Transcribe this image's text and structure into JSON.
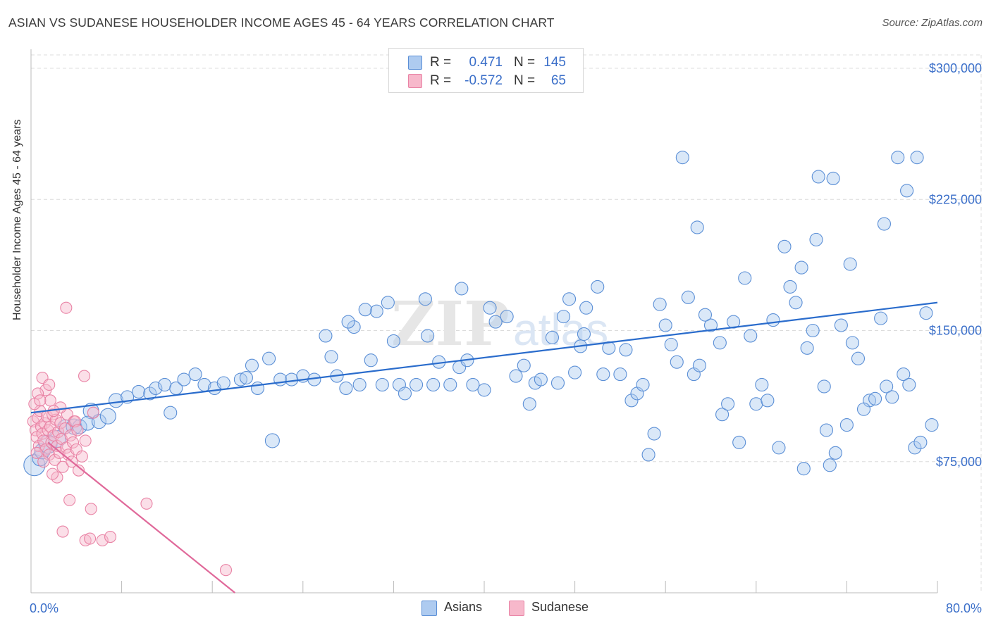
{
  "header": {
    "title": "ASIAN VS SUDANESE HOUSEHOLDER INCOME AGES 45 - 64 YEARS CORRELATION CHART",
    "source": "Source: ZipAtlas.com"
  },
  "legend": {
    "rows": [
      {
        "r_label": "R =",
        "r_value": "0.471",
        "n_label": "N =",
        "n_value": "145"
      },
      {
        "r_label": "R =",
        "r_value": "-0.572",
        "n_label": "N =",
        "n_value": "65"
      }
    ],
    "series": [
      "Asians",
      "Sudanese"
    ]
  },
  "colors": {
    "asian_fill": "#aecbf0",
    "asian_stroke": "#5b8fd6",
    "asian_line": "#2a6ccc",
    "sudanese_fill": "#f7b8cb",
    "sudanese_stroke": "#e983a5",
    "sudanese_line": "#e0699a",
    "axis_text": "#3b6fc9",
    "grid": "#dcdcdc"
  },
  "chart_data": {
    "type": "scatter",
    "title": "ASIAN VS SUDANESE HOUSEHOLDER INCOME AGES 45 - 64 YEARS CORRELATION CHART",
    "xlabel": "",
    "ylabel": "Householder Income Ages 45 - 64 years",
    "xlim": [
      0,
      80
    ],
    "ylim": [
      0,
      300000
    ],
    "x_tick_labels": [
      "0.0%",
      "80.0%"
    ],
    "y_ticks": [
      75000,
      150000,
      225000,
      300000
    ],
    "y_tick_labels": [
      "$75,000",
      "$150,000",
      "$225,000",
      "$300,000"
    ],
    "grid": true,
    "legend_position": "top-center",
    "watermark": "ZIPatlas",
    "series": [
      {
        "name": "Asians",
        "r": 0.471,
        "n": 145,
        "trendline": {
          "x": [
            0,
            80
          ],
          "y": [
            103000,
            166000
          ]
        },
        "points": [
          [
            0.3,
            73000,
            30
          ],
          [
            0.8,
            77000,
            22
          ],
          [
            1.0,
            81000,
            22
          ],
          [
            1.5,
            85000,
            26
          ],
          [
            2.3,
            88000,
            24
          ],
          [
            3.0,
            95000,
            20
          ],
          [
            3.8,
            95000,
            22
          ],
          [
            4.3,
            95000,
            20
          ],
          [
            5.3,
            104000,
            22
          ],
          [
            5.0,
            97000,
            20
          ],
          [
            6.0,
            98000,
            20
          ],
          [
            6.8,
            101000,
            22
          ],
          [
            7.5,
            110000,
            20
          ],
          [
            8.5,
            112000,
            18
          ],
          [
            9.5,
            115000,
            18
          ],
          [
            10.5,
            114000,
            18
          ],
          [
            11.0,
            117000,
            18
          ],
          [
            11.8,
            119000,
            18
          ],
          [
            12.3,
            103000,
            18
          ],
          [
            12.8,
            117000,
            18
          ],
          [
            13.5,
            122000,
            18
          ],
          [
            14.5,
            125000,
            18
          ],
          [
            15.3,
            119000,
            18
          ],
          [
            16.2,
            117000,
            18
          ],
          [
            17.0,
            120000,
            18
          ],
          [
            18.5,
            122000,
            18
          ],
          [
            19.0,
            123000,
            18
          ],
          [
            19.5,
            130000,
            18
          ],
          [
            20.0,
            117000,
            18
          ],
          [
            21.0,
            134000,
            18
          ],
          [
            21.3,
            87000,
            20
          ],
          [
            22.0,
            122000,
            18
          ],
          [
            23.0,
            122000,
            18
          ],
          [
            24.0,
            124000,
            18
          ],
          [
            25.0,
            122000,
            18
          ],
          [
            26.0,
            147000,
            18
          ],
          [
            26.5,
            135000,
            18
          ],
          [
            27.0,
            124000,
            18
          ],
          [
            27.8,
            117000,
            18
          ],
          [
            28.5,
            152000,
            18
          ],
          [
            29.0,
            119000,
            18
          ],
          [
            30.0,
            133000,
            18
          ],
          [
            31.0,
            119000,
            18
          ],
          [
            32.0,
            144000,
            18
          ],
          [
            32.5,
            119000,
            18
          ],
          [
            33.0,
            114000,
            18
          ],
          [
            34.0,
            119000,
            18
          ],
          [
            35.0,
            147000,
            18
          ],
          [
            35.5,
            119000,
            18
          ],
          [
            36.0,
            132000,
            18
          ],
          [
            37.0,
            119000,
            18
          ],
          [
            37.8,
            129000,
            18
          ],
          [
            38.5,
            133000,
            18
          ],
          [
            39.0,
            119000,
            18
          ],
          [
            40.0,
            116000,
            18
          ],
          [
            40.5,
            163000,
            18
          ],
          [
            41.0,
            155000,
            18
          ],
          [
            42.0,
            158000,
            18
          ],
          [
            42.8,
            124000,
            18
          ],
          [
            43.5,
            130000,
            18
          ],
          [
            44.5,
            120000,
            18
          ],
          [
            44.0,
            108000,
            18
          ],
          [
            45.0,
            122000,
            18
          ],
          [
            46.0,
            146000,
            18
          ],
          [
            46.5,
            120000,
            18
          ],
          [
            47.0,
            158000,
            18
          ],
          [
            47.5,
            168000,
            18
          ],
          [
            48.0,
            126000,
            18
          ],
          [
            48.5,
            141000,
            18
          ],
          [
            49.0,
            163000,
            18
          ],
          [
            50.0,
            175000,
            18
          ],
          [
            50.5,
            125000,
            18
          ],
          [
            51.0,
            140000,
            18
          ],
          [
            52.0,
            125000,
            18
          ],
          [
            53.0,
            110000,
            18
          ],
          [
            53.5,
            114000,
            18
          ],
          [
            54.0,
            119000,
            18
          ],
          [
            55.5,
            165000,
            18
          ],
          [
            56.0,
            153000,
            18
          ],
          [
            56.5,
            142000,
            18
          ],
          [
            57.0,
            132000,
            18
          ],
          [
            58.0,
            169000,
            18
          ],
          [
            58.5,
            125000,
            18
          ],
          [
            59.0,
            130000,
            18
          ],
          [
            60.0,
            153000,
            18
          ],
          [
            61.0,
            102000,
            18
          ],
          [
            61.5,
            108000,
            18
          ],
          [
            62.0,
            155000,
            18
          ],
          [
            63.0,
            180000,
            18
          ],
          [
            63.5,
            147000,
            18
          ],
          [
            64.0,
            108000,
            18
          ],
          [
            64.5,
            119000,
            18
          ],
          [
            65.0,
            110000,
            18
          ],
          [
            66.5,
            198000,
            18
          ],
          [
            67.0,
            175000,
            18
          ],
          [
            67.5,
            166000,
            18
          ],
          [
            68.0,
            186000,
            18
          ],
          [
            68.5,
            140000,
            18
          ],
          [
            69.0,
            150000,
            18
          ],
          [
            69.3,
            202000,
            18
          ],
          [
            70.0,
            118000,
            18
          ],
          [
            70.5,
            73000,
            18
          ],
          [
            71.0,
            80000,
            18
          ],
          [
            71.5,
            153000,
            18
          ],
          [
            72.0,
            96000,
            18
          ],
          [
            72.5,
            143000,
            18
          ],
          [
            73.0,
            134000,
            18
          ],
          [
            74.0,
            110000,
            18
          ],
          [
            74.5,
            111000,
            18
          ],
          [
            75.0,
            157000,
            18
          ],
          [
            75.5,
            118000,
            18
          ],
          [
            76.0,
            112000,
            18
          ],
          [
            77.0,
            125000,
            18
          ],
          [
            77.5,
            119000,
            18
          ],
          [
            78.0,
            83000,
            18
          ],
          [
            78.5,
            86000,
            18
          ],
          [
            79.0,
            160000,
            18
          ],
          [
            79.5,
            96000,
            18
          ],
          [
            54.5,
            79000,
            18
          ],
          [
            55.0,
            91000,
            18
          ],
          [
            62.5,
            86000,
            18
          ],
          [
            66.0,
            83000,
            18
          ],
          [
            68.2,
            71000,
            18
          ],
          [
            70.2,
            93000,
            18
          ],
          [
            73.5,
            105000,
            18
          ],
          [
            58.8,
            209000,
            18
          ],
          [
            57.5,
            249000,
            18
          ],
          [
            69.5,
            238000,
            18
          ],
          [
            70.8,
            237000,
            18
          ],
          [
            76.5,
            249000,
            18
          ],
          [
            78.2,
            249000,
            18
          ],
          [
            77.3,
            230000,
            18
          ],
          [
            75.3,
            211000,
            18
          ],
          [
            72.3,
            188000,
            18
          ],
          [
            65.5,
            156000,
            18
          ],
          [
            60.8,
            143000,
            18
          ],
          [
            59.5,
            159000,
            18
          ],
          [
            52.5,
            139000,
            18
          ],
          [
            48.8,
            148000,
            18
          ],
          [
            38.0,
            174000,
            18
          ],
          [
            34.8,
            168000,
            18
          ],
          [
            31.5,
            166000,
            18
          ],
          [
            30.5,
            161000,
            18
          ],
          [
            29.5,
            162000,
            18
          ],
          [
            28.0,
            155000,
            18
          ]
        ]
      },
      {
        "name": "Sudanese",
        "r": -0.572,
        "n": 65,
        "trendline": {
          "x": [
            1.5,
            18.0
          ],
          "y": [
            86000,
            0
          ]
        },
        "points": [
          [
            0.2,
            98000,
            16
          ],
          [
            0.4,
            93000,
            16
          ],
          [
            0.5,
            89000,
            16
          ],
          [
            0.6,
            100000,
            16
          ],
          [
            0.7,
            84000,
            16
          ],
          [
            0.8,
            104000,
            16
          ],
          [
            0.9,
            95000,
            16
          ],
          [
            1.0,
            91000,
            16
          ],
          [
            1.1,
            87000,
            16
          ],
          [
            1.2,
            97000,
            16
          ],
          [
            1.3,
            82000,
            16
          ],
          [
            1.4,
            101000,
            16
          ],
          [
            1.5,
            93000,
            16
          ],
          [
            1.6,
            79000,
            16
          ],
          [
            1.7,
            95000,
            16
          ],
          [
            1.8,
            86000,
            16
          ],
          [
            1.9,
            102000,
            16
          ],
          [
            2.0,
            90000,
            16
          ],
          [
            2.1,
            76000,
            16
          ],
          [
            2.2,
            99000,
            16
          ],
          [
            2.3,
            84000,
            16
          ],
          [
            2.4,
            92000,
            16
          ],
          [
            2.5,
            80000,
            16
          ],
          [
            2.6,
            97000,
            16
          ],
          [
            2.7,
            88000,
            16
          ],
          [
            2.8,
            72000,
            16
          ],
          [
            3.0,
            94000,
            16
          ],
          [
            3.1,
            83000,
            16
          ],
          [
            3.2,
            102000,
            16
          ],
          [
            3.3,
            79000,
            16
          ],
          [
            3.5,
            90000,
            16
          ],
          [
            3.6,
            75000,
            16
          ],
          [
            3.7,
            86000,
            16
          ],
          [
            3.8,
            98000,
            16
          ],
          [
            4.0,
            82000,
            16
          ],
          [
            4.2,
            70000,
            16
          ],
          [
            4.5,
            78000,
            16
          ],
          [
            4.8,
            87000,
            16
          ],
          [
            1.0,
            123000,
            16
          ],
          [
            1.3,
            116000,
            16
          ],
          [
            1.7,
            110000,
            16
          ],
          [
            1.6,
            119000,
            16
          ],
          [
            3.1,
            163000,
            16
          ],
          [
            4.7,
            124000,
            16
          ],
          [
            5.5,
            103000,
            16
          ],
          [
            3.4,
            53000,
            16
          ],
          [
            5.3,
            48000,
            16
          ],
          [
            10.2,
            51000,
            16
          ],
          [
            2.8,
            35000,
            16
          ],
          [
            4.8,
            30000,
            16
          ],
          [
            5.2,
            31000,
            16
          ],
          [
            6.3,
            30000,
            16
          ],
          [
            7.0,
            32000,
            16
          ],
          [
            17.2,
            13000,
            16
          ],
          [
            0.3,
            108000,
            16
          ],
          [
            0.6,
            114000,
            16
          ],
          [
            2.3,
            66000,
            16
          ],
          [
            1.9,
            68000,
            16
          ],
          [
            0.5,
            80000,
            16
          ],
          [
            2.6,
            106000,
            16
          ],
          [
            3.9,
            98000,
            16
          ],
          [
            4.1,
            93000,
            16
          ],
          [
            1.1,
            75000,
            16
          ],
          [
            0.8,
            110000,
            16
          ],
          [
            2.0,
            104000,
            16
          ]
        ]
      }
    ]
  }
}
